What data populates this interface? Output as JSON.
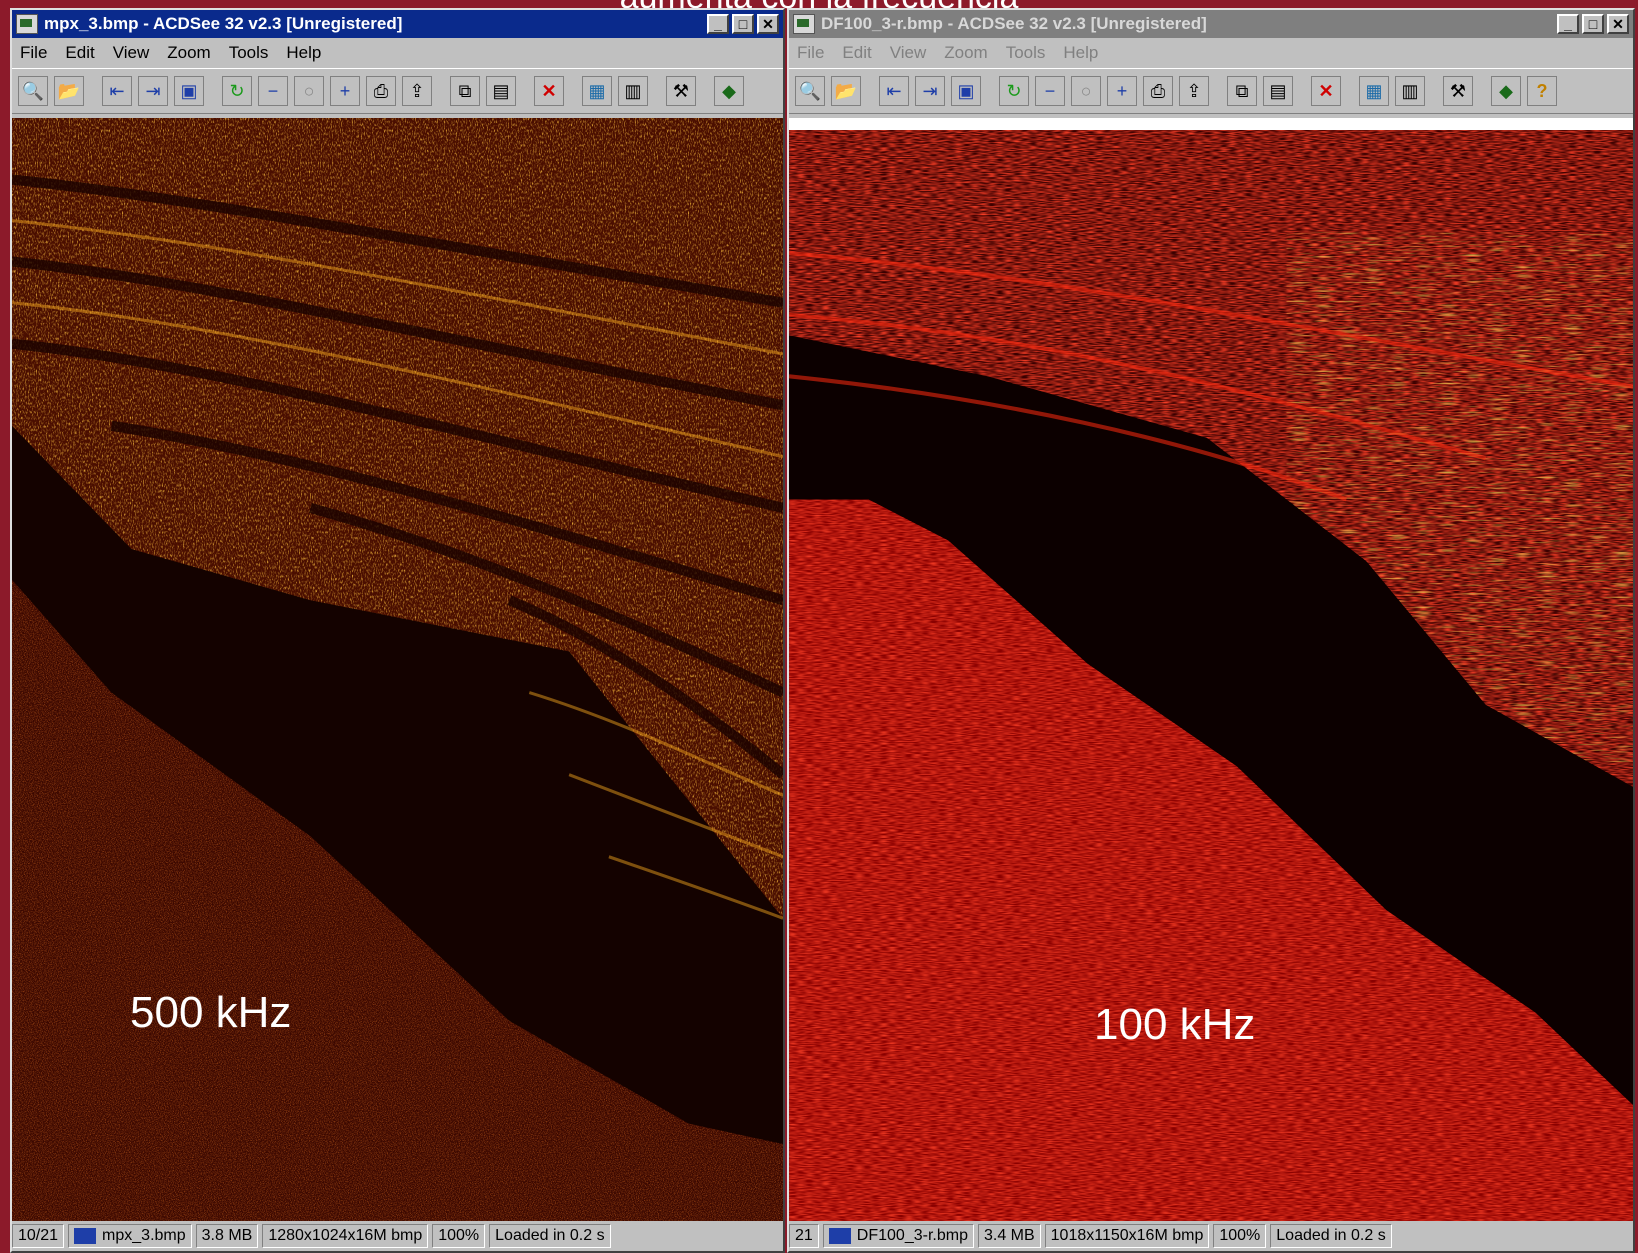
{
  "slide_caption": "aumenta con la frecuencia",
  "windows": [
    {
      "title": "mpx_3.bmp - ACDSee 32 v2.3 [Unregistered]",
      "menu": [
        "File",
        "Edit",
        "View",
        "Zoom",
        "Tools",
        "Help"
      ],
      "image_label": "500 kHz",
      "status": {
        "index": "10/21",
        "filename": "mpx_3.bmp",
        "size": "3.8 MB",
        "dimensions": "1280x1024x16M bmp",
        "zoom": "100%",
        "load_time": "Loaded in 0.2 s"
      }
    },
    {
      "title": "DF100_3-r.bmp - ACDSee 32 v2.3 [Unregistered]",
      "menu": [
        "File",
        "Edit",
        "View",
        "Zoom",
        "Tools",
        "Help"
      ],
      "image_label": "100 kHz",
      "status": {
        "index": "21",
        "filename": "DF100_3-r.bmp",
        "size": "3.4 MB",
        "dimensions": "1018x1150x16M bmp",
        "zoom": "100%",
        "load_time": "Loaded in 0.2 s"
      }
    }
  ]
}
